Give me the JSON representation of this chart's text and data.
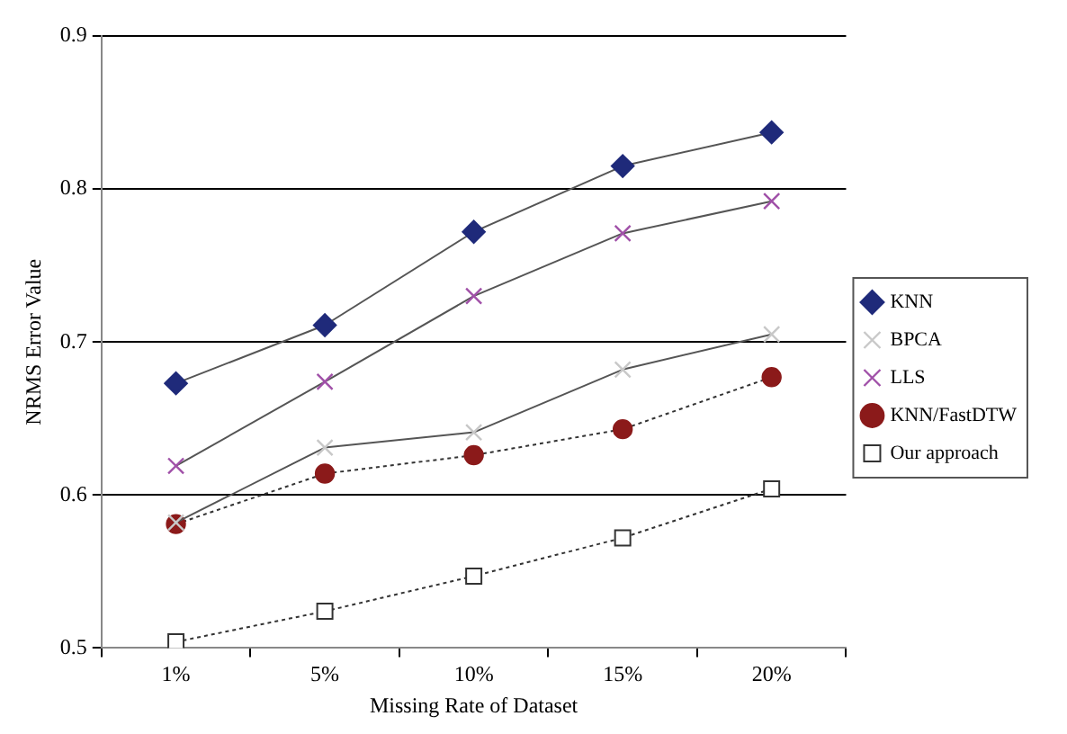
{
  "chart_data": {
    "type": "line",
    "xlabel": "Missing Rate of Dataset",
    "ylabel": "NRMS Error Value",
    "categories": [
      "1%",
      "5%",
      "10%",
      "15%",
      "20%"
    ],
    "ylim": [
      0.5,
      0.9
    ],
    "yticks": [
      0.5,
      0.6,
      0.7,
      0.8,
      0.9
    ],
    "grid": "y",
    "legend": "right",
    "series": [
      {
        "name": "KNN",
        "color": "#1f2a7a",
        "marker": "diamond",
        "line_style": "solid",
        "values": [
          0.673,
          0.711,
          0.772,
          0.815,
          0.837
        ]
      },
      {
        "name": "BPCA",
        "color": "#c8c8c8",
        "marker": "cross",
        "line_style": "solid",
        "values": [
          0.582,
          0.631,
          0.641,
          0.682,
          0.705
        ]
      },
      {
        "name": "LLS",
        "color": "#a050a8",
        "marker": "cross",
        "line_style": "solid",
        "values": [
          0.619,
          0.674,
          0.73,
          0.771,
          0.792
        ]
      },
      {
        "name": "KNN/FastDTW",
        "color": "#8b1a1a",
        "marker": "circle",
        "line_style": "dotted",
        "values": [
          0.581,
          0.614,
          0.626,
          0.643,
          0.677
        ]
      },
      {
        "name": "Our approach",
        "color": "#333333",
        "marker": "square",
        "line_style": "dotted",
        "values": [
          0.504,
          0.524,
          0.547,
          0.572,
          0.604
        ]
      }
    ]
  }
}
